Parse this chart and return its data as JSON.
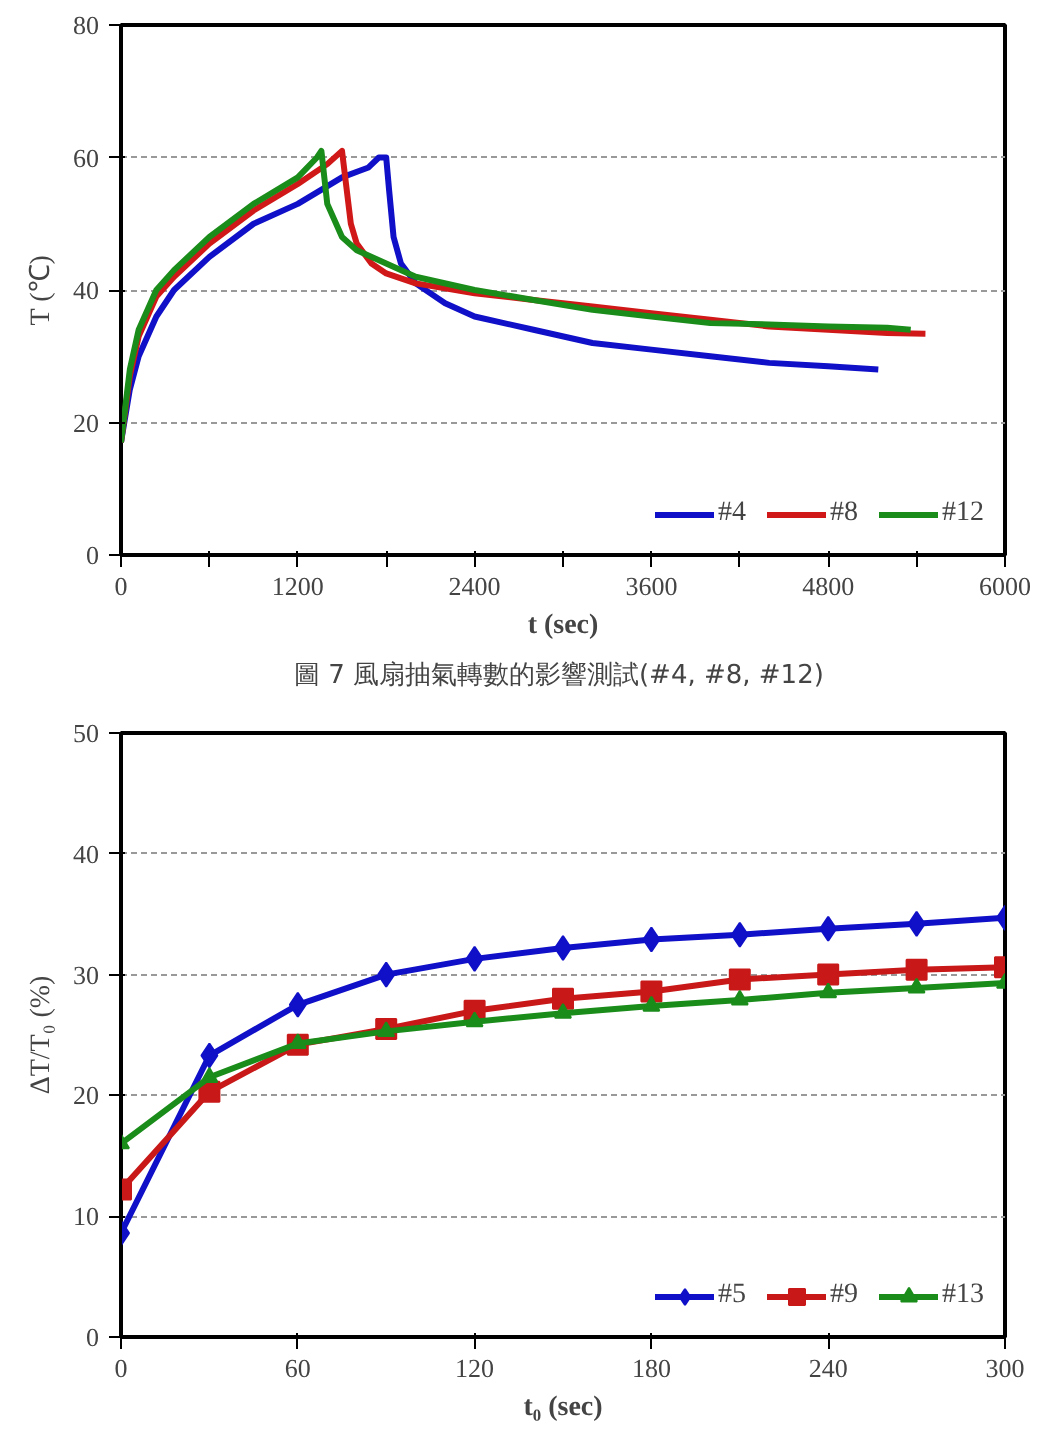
{
  "chart_data": [
    {
      "type": "line",
      "xlabel": "t (sec)",
      "ylabel": "T (℃)",
      "annotations": [
        "圖 7  風扇抽氣轉數的影響測試(#4, #8, #12)"
      ],
      "xlim": [
        0,
        6000
      ],
      "ylim": [
        0,
        80
      ],
      "xticks": [
        0,
        {
          "value": 600,
          "label": null
        },
        1200,
        {
          "value": 1800,
          "label": null
        },
        2400,
        {
          "value": 3000,
          "label": null
        },
        3600,
        {
          "value": 4200,
          "label": null
        },
        4800,
        {
          "value": 5400,
          "label": null
        },
        6000
      ],
      "yticks": [
        0,
        20,
        40,
        60,
        80
      ],
      "grid": "y",
      "legend": "bottom right",
      "marker": "none",
      "line_style": "solid",
      "series": [
        {
          "name": "#4",
          "color": "#1010c8",
          "x": [
            0,
            60,
            120,
            240,
            360,
            600,
            900,
            1200,
            1500,
            1620,
            1680,
            1750,
            1800,
            1820,
            1850,
            1900,
            2000,
            2200,
            2400,
            2800,
            3200,
            3600,
            4000,
            4400,
            4800,
            5140
          ],
          "values": [
            17,
            25,
            30,
            36,
            40,
            45,
            50,
            53,
            57,
            58,
            58.5,
            60,
            60,
            55,
            48,
            44,
            41,
            38,
            36,
            34,
            32,
            31,
            30,
            29,
            28.5,
            28
          ]
        },
        {
          "name": "#8",
          "color": "#d01818",
          "x": [
            0,
            60,
            120,
            240,
            360,
            600,
            900,
            1200,
            1400,
            1500,
            1560,
            1600,
            1700,
            1800,
            2000,
            2400,
            2800,
            3200,
            3600,
            4000,
            4400,
            4800,
            5200,
            5460
          ],
          "values": [
            17,
            27,
            33,
            39,
            42,
            47,
            52,
            56,
            59,
            61,
            50,
            47,
            44,
            42.5,
            41,
            39.5,
            38.5,
            37.5,
            36.5,
            35.5,
            34.5,
            34,
            33.5,
            33.4
          ]
        },
        {
          "name": "#12",
          "color": "#1a8c1a",
          "x": [
            0,
            60,
            120,
            240,
            360,
            600,
            900,
            1200,
            1330,
            1360,
            1400,
            1500,
            1600,
            1800,
            2000,
            2400,
            2800,
            3200,
            3600,
            4000,
            4400,
            4800,
            5200,
            5360
          ],
          "values": [
            17,
            28,
            34,
            40,
            43,
            48,
            53,
            57,
            60,
            61,
            53,
            48,
            46,
            44,
            42,
            40,
            38.5,
            37,
            36,
            35,
            34.8,
            34.5,
            34.3,
            34
          ]
        }
      ]
    },
    {
      "type": "line",
      "xlabel": "t₀ (sec)",
      "ylabel": "ΔT/T₀ (%)",
      "xlim": [
        0,
        300
      ],
      "ylim": [
        0,
        50
      ],
      "xticks": [
        0,
        60,
        120,
        180,
        240,
        300
      ],
      "yticks": [
        0,
        10,
        20,
        30,
        40,
        50
      ],
      "grid": "y",
      "legend": "bottom right",
      "line_style": "solid",
      "x": [
        0,
        30,
        60,
        90,
        120,
        150,
        180,
        210,
        240,
        270,
        300
      ],
      "series": [
        {
          "name": "#5",
          "color": "#1010c8",
          "marker": "diamond",
          "values": [
            8.6,
            23.3,
            27.5,
            30,
            31.3,
            32.2,
            32.9,
            33.3,
            33.8,
            34.2,
            34.7
          ]
        },
        {
          "name": "#9",
          "color": "#c81818",
          "marker": "square",
          "values": [
            12.2,
            20.3,
            24.2,
            25.5,
            27,
            28,
            28.6,
            29.6,
            30,
            30.4,
            30.6
          ]
        },
        {
          "name": "#13",
          "color": "#1a8c1a",
          "marker": "triangle",
          "values": [
            16,
            21.5,
            24.3,
            25.3,
            26.1,
            26.8,
            27.4,
            27.9,
            28.5,
            28.9,
            29.3
          ]
        }
      ]
    }
  ]
}
